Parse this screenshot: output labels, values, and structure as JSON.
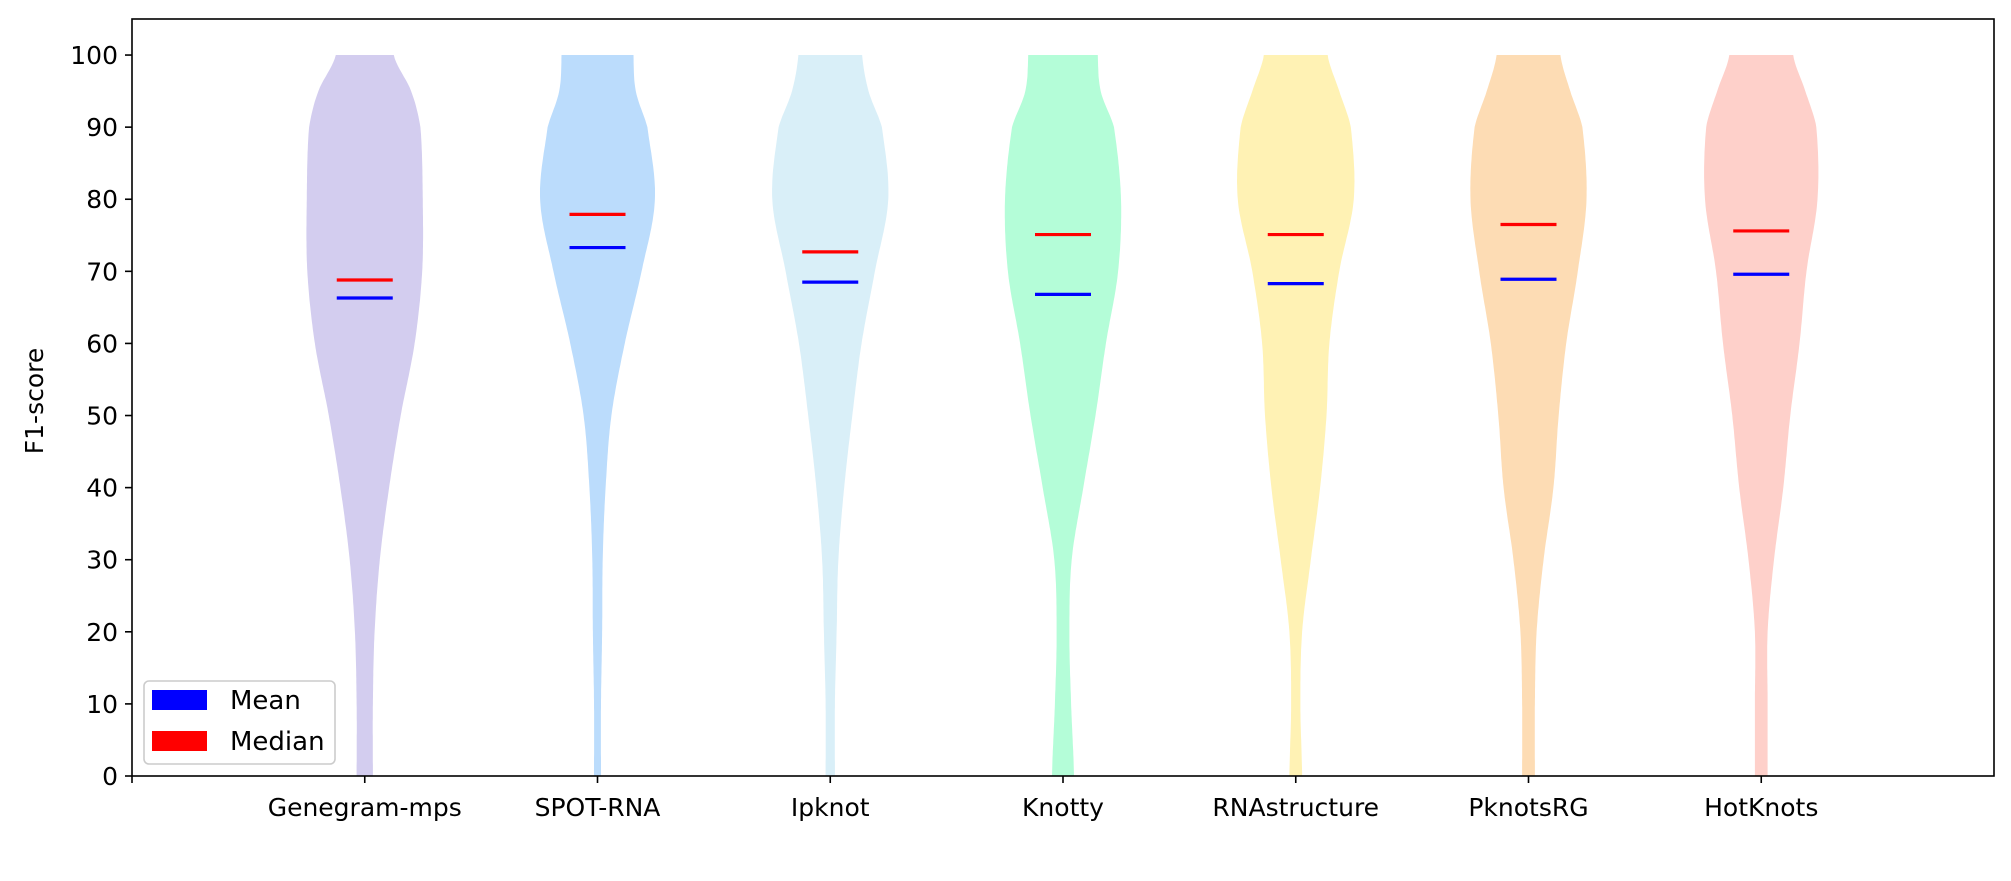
{
  "chart_data": {
    "type": "violin",
    "title": "",
    "xlabel": "",
    "ylabel": "F1-score",
    "ylim": [
      0,
      105
    ],
    "yticks": [
      "0",
      "10",
      "20",
      "30",
      "40",
      "50",
      "60",
      "70",
      "80",
      "90",
      "100"
    ],
    "grid": false,
    "legend_position": "lower-left",
    "legend": [
      {
        "label": "Mean",
        "color": "#0000ff"
      },
      {
        "label": "Median",
        "color": "#ff0000"
      }
    ],
    "categories": [
      "Genegram-mps",
      "SPOT-RNA",
      "Ipknot",
      "Knotty",
      "RNAstructure",
      "PknotsRG",
      "HotKnots"
    ],
    "colors": [
      "#d3cdef",
      "#bbdcfc",
      "#d9eff8",
      "#b4fdd8",
      "#fff2b4",
      "#fddcb4",
      "#fed0ca"
    ],
    "means": [
      66.3,
      73.3,
      68.5,
      66.8,
      68.3,
      68.9,
      69.6
    ],
    "medians": [
      68.8,
      77.9,
      72.7,
      75.1,
      75.1,
      76.5,
      75.6
    ],
    "violins": [
      {
        "profile": [
          [
            0,
            0.14
          ],
          [
            10,
            0.14
          ],
          [
            20,
            0.17
          ],
          [
            30,
            0.26
          ],
          [
            40,
            0.42
          ],
          [
            50,
            0.62
          ],
          [
            60,
            0.86
          ],
          [
            70,
            0.99
          ],
          [
            80,
            1.0
          ],
          [
            90,
            0.96
          ],
          [
            95,
            0.8
          ],
          [
            100,
            0.5
          ]
        ]
      },
      {
        "profile": [
          [
            0,
            0.06
          ],
          [
            10,
            0.06
          ],
          [
            20,
            0.08
          ],
          [
            30,
            0.09
          ],
          [
            40,
            0.14
          ],
          [
            50,
            0.24
          ],
          [
            60,
            0.47
          ],
          [
            70,
            0.76
          ],
          [
            80,
            0.99
          ],
          [
            90,
            0.86
          ],
          [
            95,
            0.66
          ],
          [
            100,
            0.62
          ]
        ]
      },
      {
        "profile": [
          [
            0,
            0.08
          ],
          [
            10,
            0.08
          ],
          [
            20,
            0.11
          ],
          [
            30,
            0.14
          ],
          [
            40,
            0.24
          ],
          [
            50,
            0.38
          ],
          [
            60,
            0.54
          ],
          [
            70,
            0.77
          ],
          [
            80,
            1.0
          ],
          [
            90,
            0.89
          ],
          [
            95,
            0.66
          ],
          [
            100,
            0.55
          ]
        ]
      },
      {
        "profile": [
          [
            0,
            0.19
          ],
          [
            10,
            0.14
          ],
          [
            20,
            0.11
          ],
          [
            30,
            0.15
          ],
          [
            40,
            0.35
          ],
          [
            50,
            0.56
          ],
          [
            60,
            0.74
          ],
          [
            70,
            0.95
          ],
          [
            80,
            1.0
          ],
          [
            90,
            0.88
          ],
          [
            95,
            0.65
          ],
          [
            100,
            0.6
          ]
        ]
      },
      {
        "profile": [
          [
            0,
            0.11
          ],
          [
            10,
            0.08
          ],
          [
            20,
            0.11
          ],
          [
            30,
            0.26
          ],
          [
            40,
            0.42
          ],
          [
            50,
            0.53
          ],
          [
            60,
            0.58
          ],
          [
            70,
            0.75
          ],
          [
            80,
            1.0
          ],
          [
            90,
            0.95
          ],
          [
            95,
            0.75
          ],
          [
            100,
            0.55
          ]
        ]
      },
      {
        "profile": [
          [
            0,
            0.11
          ],
          [
            10,
            0.11
          ],
          [
            20,
            0.14
          ],
          [
            30,
            0.26
          ],
          [
            40,
            0.43
          ],
          [
            50,
            0.52
          ],
          [
            60,
            0.65
          ],
          [
            70,
            0.85
          ],
          [
            80,
            1.0
          ],
          [
            90,
            0.93
          ],
          [
            95,
            0.72
          ],
          [
            100,
            0.55
          ]
        ]
      },
      {
        "profile": [
          [
            0,
            0.11
          ],
          [
            10,
            0.11
          ],
          [
            20,
            0.11
          ],
          [
            30,
            0.22
          ],
          [
            40,
            0.38
          ],
          [
            50,
            0.5
          ],
          [
            60,
            0.66
          ],
          [
            70,
            0.78
          ],
          [
            80,
            0.97
          ],
          [
            90,
            0.95
          ],
          [
            95,
            0.76
          ],
          [
            100,
            0.55
          ]
        ]
      }
    ]
  }
}
